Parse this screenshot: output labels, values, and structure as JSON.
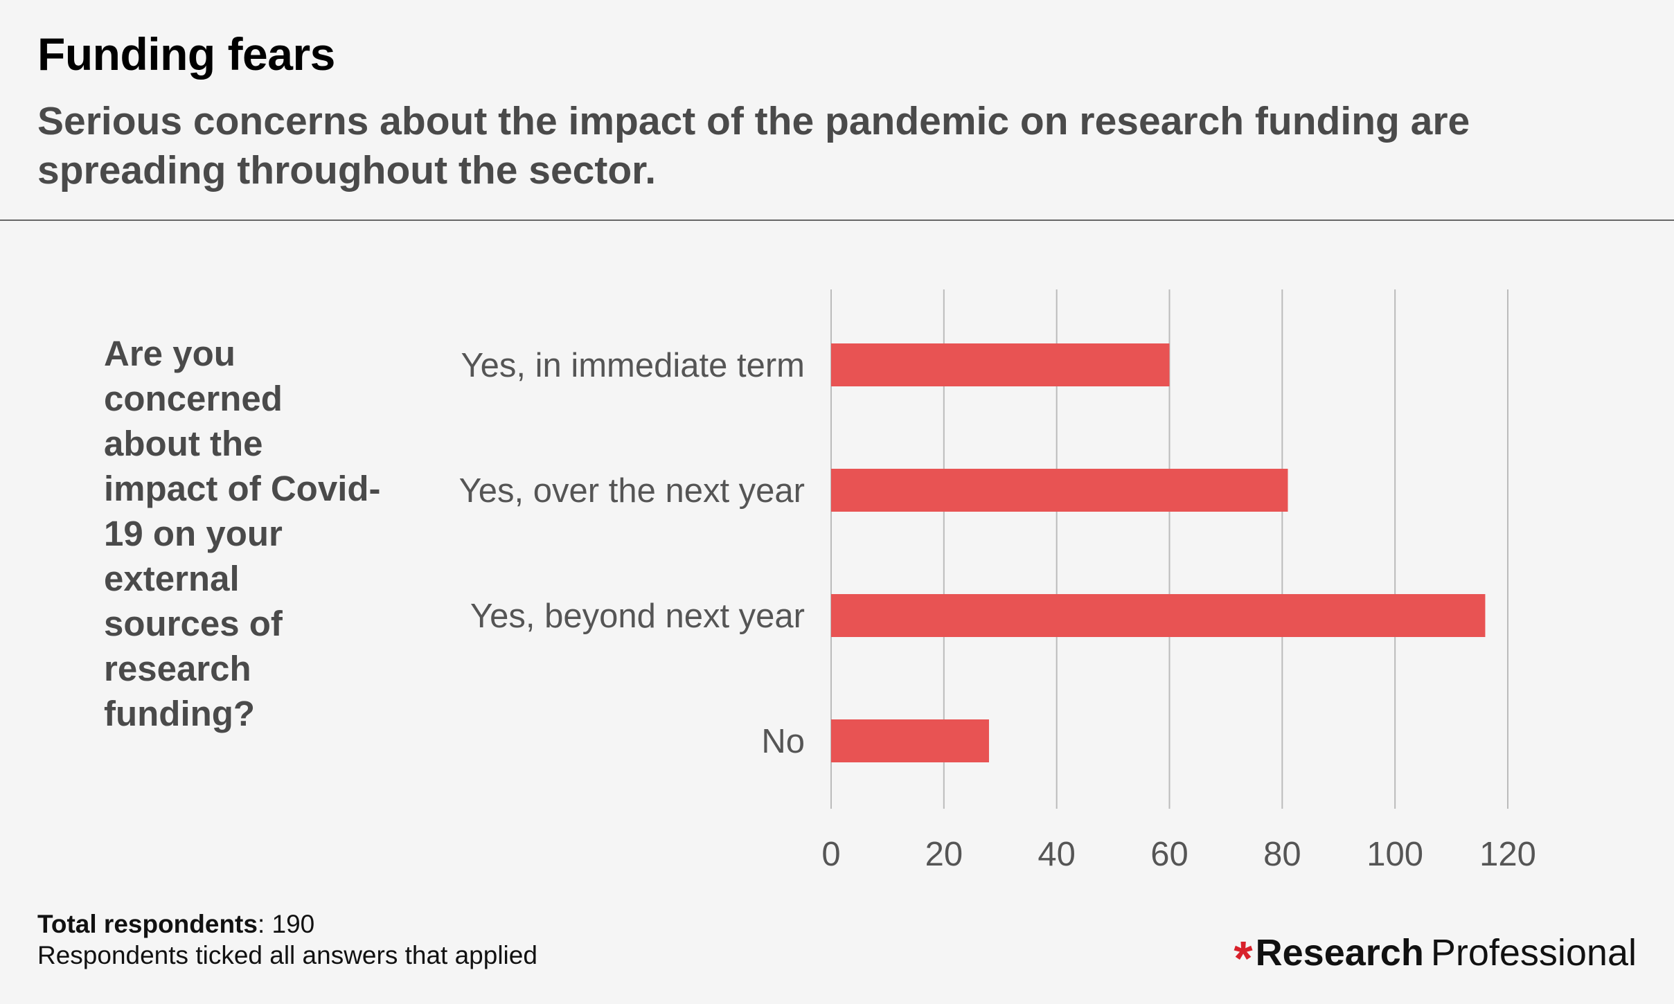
{
  "title": "Funding fears",
  "subtitle": "Serious concerns about the impact of the pandemic on research funding are spreading throughout the sector.",
  "question": "Are you concerned about the impact of Covid-19 on your external sources of research funding?",
  "footer": {
    "total_label": "Total respondents",
    "total_value": ": 190",
    "note": "Respondents ticked all answers that applied"
  },
  "brand": {
    "symbol": "*",
    "bold_text": "Research",
    "light_text": "Professional"
  },
  "colors": {
    "bar": "#e85353",
    "grid": "#bbbbbb"
  },
  "chart_data": {
    "type": "bar",
    "orientation": "horizontal",
    "categories": [
      "Yes, in immediate term",
      "Yes, over the next year",
      "Yes, beyond next year",
      "No"
    ],
    "values": [
      60,
      81,
      116,
      28
    ],
    "xlim": [
      0,
      120
    ],
    "xticks": [
      0,
      20,
      40,
      60,
      80,
      100,
      120
    ],
    "grid": true
  }
}
